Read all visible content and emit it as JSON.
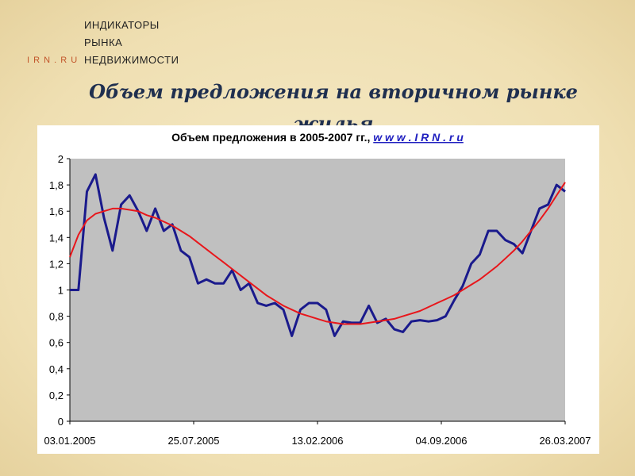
{
  "logo": {
    "lines": [
      "ИНДИКАТОРЫ",
      "РЫНКА",
      "НЕДВИЖИМОСТИ"
    ],
    "site": "I R N . R U"
  },
  "slide_title": "Объем предложения на вторичном рынке жилья",
  "chart_data": {
    "type": "line",
    "title": "Объем предложения в 2005-2007 гг., ",
    "title_link": "w w w . I R N . r u",
    "x": [
      "03.01.2005",
      "17.01.2005",
      "31.01.2005",
      "14.02.2005",
      "28.02.2005",
      "14.03.2005",
      "28.03.2005",
      "11.04.2005",
      "25.04.2005",
      "09.05.2005",
      "23.05.2005",
      "06.06.2005",
      "20.06.2005",
      "04.07.2005",
      "18.07.2005",
      "01.08.2005",
      "15.08.2005",
      "29.08.2005",
      "12.09.2005",
      "26.09.2005",
      "10.10.2005",
      "24.10.2005",
      "07.11.2005",
      "21.11.2005",
      "05.12.2005",
      "19.12.2005",
      "02.01.2006",
      "16.01.2006",
      "30.01.2006",
      "13.02.2006",
      "27.02.2006",
      "13.03.2006",
      "27.03.2006",
      "10.04.2006",
      "24.04.2006",
      "08.05.2006",
      "22.05.2006",
      "05.06.2006",
      "19.06.2006",
      "03.07.2006",
      "17.07.2006",
      "31.07.2006",
      "14.08.2006",
      "28.08.2006",
      "11.09.2006",
      "25.09.2006",
      "09.10.2006",
      "23.10.2006",
      "06.11.2006",
      "20.11.2006",
      "04.12.2006",
      "18.12.2006",
      "01.01.2007",
      "15.01.2007",
      "29.01.2007",
      "12.02.2007",
      "26.02.2007",
      "12.03.2007",
      "26.03.2007"
    ],
    "series": [
      {
        "color": "#1a1a8c",
        "values": [
          1.0,
          1.0,
          1.75,
          1.88,
          1.55,
          1.3,
          1.65,
          1.72,
          1.6,
          1.45,
          1.62,
          1.45,
          1.5,
          1.3,
          1.25,
          1.05,
          1.08,
          1.05,
          1.05,
          1.15,
          1.0,
          1.05,
          0.9,
          0.88,
          0.9,
          0.85,
          0.65,
          0.85,
          0.9,
          0.9,
          0.85,
          0.65,
          0.76,
          0.75,
          0.75,
          0.88,
          0.75,
          0.78,
          0.7,
          0.68,
          0.76,
          0.77,
          0.76,
          0.77,
          0.8,
          0.92,
          1.03,
          1.2,
          1.27,
          1.45,
          1.45,
          1.38,
          1.35,
          1.28,
          1.45,
          1.62,
          1.65,
          1.8,
          1.75
        ]
      },
      {
        "color": "#e8161b",
        "values": [
          1.25,
          1.42,
          1.53,
          1.58,
          1.6,
          1.62,
          1.62,
          1.61,
          1.6,
          1.57,
          1.55,
          1.52,
          1.49,
          1.45,
          1.41,
          1.36,
          1.31,
          1.26,
          1.21,
          1.16,
          1.11,
          1.06,
          1.01,
          0.96,
          0.92,
          0.88,
          0.85,
          0.82,
          0.8,
          0.78,
          0.76,
          0.75,
          0.74,
          0.74,
          0.74,
          0.75,
          0.76,
          0.77,
          0.78,
          0.8,
          0.82,
          0.84,
          0.87,
          0.9,
          0.93,
          0.96,
          1.0,
          1.04,
          1.08,
          1.13,
          1.18,
          1.24,
          1.3,
          1.37,
          1.45,
          1.53,
          1.62,
          1.72,
          1.82
        ]
      }
    ],
    "xlim": [
      "03.01.2005",
      "26.03.2007"
    ],
    "xticks": [
      "03.01.2005",
      "25.07.2005",
      "13.02.2006",
      "04.09.2006",
      "26.03.2007"
    ],
    "ylim": [
      0,
      2
    ],
    "yticks": [
      0,
      {
        "value": 0.2,
        "label": "0,2"
      },
      {
        "value": 0.4,
        "label": "0,4"
      },
      {
        "value": 0.6,
        "label": "0,6"
      },
      {
        "value": 0.8,
        "label": "0,8"
      },
      1,
      {
        "value": 1.2,
        "label": "1,2"
      },
      {
        "value": 1.4,
        "label": "1,4"
      },
      {
        "value": 1.6,
        "label": "1,6"
      },
      {
        "value": 1.8,
        "label": "1,8"
      },
      2
    ],
    "plot_background": "#c0c0c0"
  }
}
